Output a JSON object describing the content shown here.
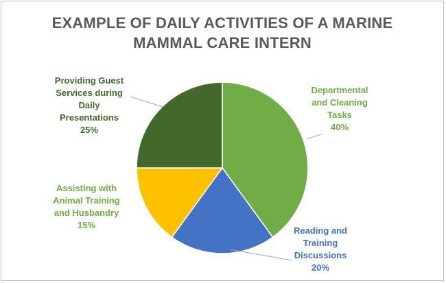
{
  "chart_data": {
    "type": "pie",
    "title_lines": [
      "EXAMPLE OF DAILY ACTIVITIES OF A MARINE",
      "MAMMAL CARE INTERN"
    ],
    "slices": [
      {
        "label_lines": [
          "Departmental",
          "and Cleaning",
          "Tasks"
        ],
        "value": 40,
        "value_label": "40%",
        "color": "#70ad47",
        "label_color": "#70ad47"
      },
      {
        "label_lines": [
          "Reading and",
          "Training",
          "Discussions"
        ],
        "value": 20,
        "value_label": "20%",
        "color": "#4472c4",
        "label_color": "#4472c4"
      },
      {
        "label_lines": [
          "Assisting with",
          "Animal Training",
          "and Husbandry"
        ],
        "value": 15,
        "value_label": "15%",
        "color": "#ffc000",
        "label_color": "#70ad47"
      },
      {
        "label_lines": [
          "Providing Guest",
          "Services during",
          "Daily",
          "Presentations"
        ],
        "value": 25,
        "value_label": "25%",
        "color": "#43682b",
        "label_color": "#43682b"
      }
    ],
    "start_angle_deg": 0,
    "direction": "clockwise"
  }
}
